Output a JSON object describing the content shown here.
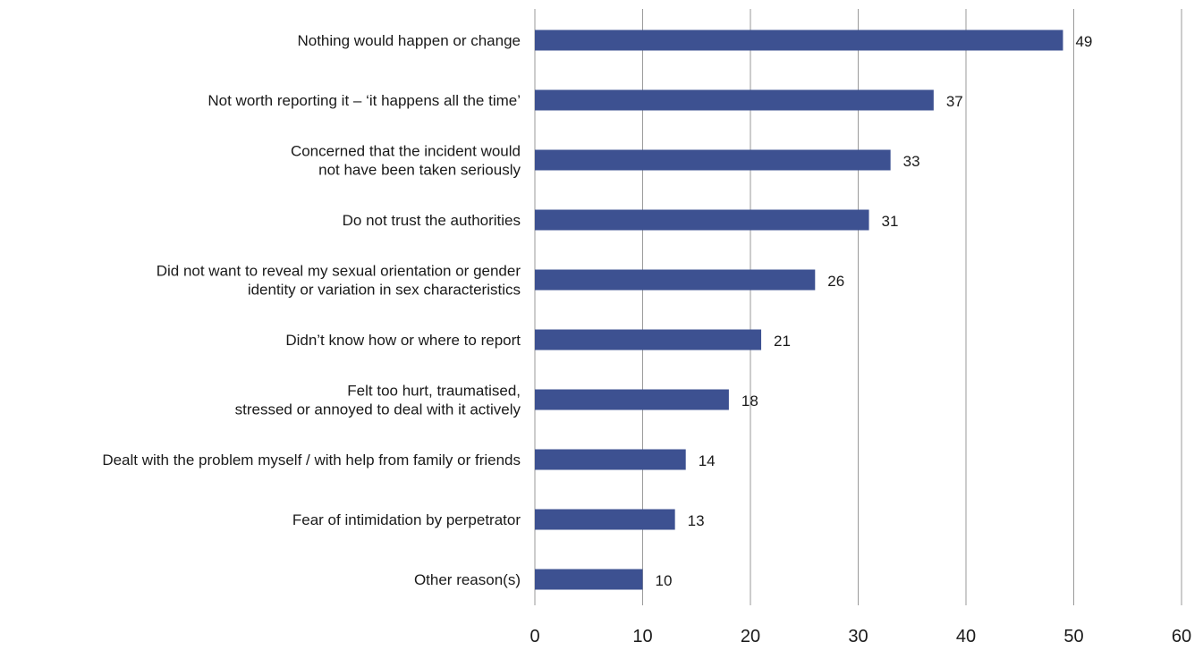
{
  "chart_data": {
    "type": "bar",
    "orientation": "horizontal",
    "categories": [
      [
        "Nothing would happen or change"
      ],
      [
        "Not worth reporting it – ‘it happens all the time’"
      ],
      [
        "Concerned that the incident would",
        "not have been taken seriously"
      ],
      [
        "Do not trust the authorities"
      ],
      [
        "Did not want to reveal my sexual orientation or gender",
        "identity or variation in sex characteristics"
      ],
      [
        "Didn’t know how or where to report"
      ],
      [
        "Felt too hurt, traumatised,",
        "stressed or annoyed to deal with it actively"
      ],
      [
        "Dealt with the problem myself / with help from family or friends"
      ],
      [
        "Fear of intimidation by perpetrator"
      ],
      [
        "Other reason(s)"
      ]
    ],
    "values": [
      49,
      37,
      33,
      31,
      26,
      21,
      18,
      14,
      13,
      10
    ],
    "value_labels": [
      "49",
      "37",
      "33",
      "31",
      "26",
      "21",
      "18",
      "14",
      "13",
      "10"
    ],
    "xlim": [
      0,
      60
    ],
    "x_ticks": [
      "0",
      "10",
      "20",
      "30",
      "40",
      "50",
      "60"
    ],
    "grid": "vertical",
    "bar_color": "#3d5191",
    "grid_color": "#9a9a9a",
    "title": "",
    "xlabel": "",
    "ylabel": ""
  }
}
